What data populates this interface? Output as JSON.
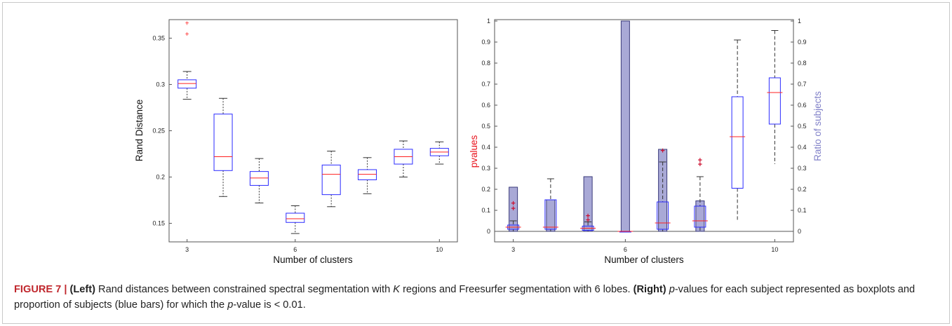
{
  "chart_data": [
    {
      "type": "box",
      "panel": "left",
      "xlabel": "Number of clusters",
      "ylabel": "Rand Distance",
      "xlim": [
        2.5,
        10.5
      ],
      "ylim": [
        0.13,
        0.37
      ],
      "x_ticks": [
        3,
        6,
        10
      ],
      "y_ticks": [
        0.15,
        0.2,
        0.25,
        0.3,
        0.35
      ],
      "boxes": [
        {
          "k": 3,
          "whisker_low": 0.284,
          "q1": 0.296,
          "median": 0.301,
          "q3": 0.305,
          "whisker_high": 0.314,
          "outliers": [
            0.354,
            0.366
          ]
        },
        {
          "k": 4,
          "whisker_low": 0.179,
          "q1": 0.207,
          "median": 0.222,
          "q3": 0.268,
          "whisker_high": 0.285,
          "outliers": []
        },
        {
          "k": 5,
          "whisker_low": 0.172,
          "q1": 0.191,
          "median": 0.199,
          "q3": 0.206,
          "whisker_high": 0.22,
          "outliers": []
        },
        {
          "k": 6,
          "whisker_low": 0.139,
          "q1": 0.151,
          "median": 0.155,
          "q3": 0.161,
          "whisker_high": 0.169,
          "outliers": []
        },
        {
          "k": 7,
          "whisker_low": 0.168,
          "q1": 0.181,
          "median": 0.203,
          "q3": 0.213,
          "whisker_high": 0.228,
          "outliers": []
        },
        {
          "k": 8,
          "whisker_low": 0.182,
          "q1": 0.197,
          "median": 0.203,
          "q3": 0.208,
          "whisker_high": 0.221,
          "outliers": []
        },
        {
          "k": 9,
          "whisker_low": 0.2,
          "q1": 0.214,
          "median": 0.222,
          "q3": 0.23,
          "whisker_high": 0.239,
          "outliers": []
        },
        {
          "k": 10,
          "whisker_low": 0.214,
          "q1": 0.223,
          "median": 0.227,
          "q3": 0.231,
          "whisker_high": 0.238,
          "outliers": []
        }
      ],
      "colors": {
        "box": "#2b2bff",
        "median": "#ff2020",
        "whisker": "#333333",
        "outlier": "#ff2020"
      }
    },
    {
      "type": "box+bar",
      "panel": "right",
      "xlabel": "Number of clusters",
      "ylabel_left": "pvalues",
      "ylabel_right": "Ratio of subjects",
      "xlim": [
        2.5,
        10.5
      ],
      "ylim": [
        0,
        1
      ],
      "x_ticks": [
        3,
        6,
        10
      ],
      "y_ticks": [
        0,
        0.1,
        0.2,
        0.3,
        0.4,
        0.5,
        0.6,
        0.7,
        0.8,
        0.9,
        1
      ],
      "ratio_bars": [
        {
          "k": 3,
          "ratio": 0.21
        },
        {
          "k": 4,
          "ratio": 0.15
        },
        {
          "k": 5,
          "ratio": 0.26
        },
        {
          "k": 6,
          "ratio": 1.0
        },
        {
          "k": 7,
          "ratio": 0.39
        },
        {
          "k": 8,
          "ratio": 0.145
        },
        {
          "k": 9,
          "ratio": 0.0
        },
        {
          "k": 10,
          "ratio": 0.0
        }
      ],
      "boxes": [
        {
          "k": 3,
          "whisker_low": 0.0,
          "q1": 0.01,
          "median": 0.02,
          "q3": 0.03,
          "whisker_high": 0.05,
          "outliers": [
            0.11,
            0.135
          ]
        },
        {
          "k": 4,
          "whisker_low": 0.0,
          "q1": 0.01,
          "median": 0.02,
          "q3": 0.15,
          "whisker_high": 0.25,
          "outliers": []
        },
        {
          "k": 5,
          "whisker_low": 0.0,
          "q1": 0.005,
          "median": 0.015,
          "q3": 0.025,
          "whisker_high": 0.045,
          "outliers": [
            0.055,
            0.075
          ]
        },
        {
          "k": 6,
          "whisker_low": 0.0,
          "q1": 0.0,
          "median": 0.0,
          "q3": 0.0,
          "whisker_high": 0.0,
          "outliers": []
        },
        {
          "k": 7,
          "whisker_low": 0.0,
          "q1": 0.01,
          "median": 0.04,
          "q3": 0.14,
          "whisker_high": 0.33,
          "outliers": [
            0.385
          ]
        },
        {
          "k": 8,
          "whisker_low": 0.0,
          "q1": 0.02,
          "median": 0.05,
          "q3": 0.12,
          "whisker_high": 0.26,
          "outliers": [
            0.32,
            0.34
          ]
        },
        {
          "k": 9,
          "whisker_low": 0.055,
          "q1": 0.205,
          "median": 0.45,
          "q3": 0.64,
          "whisker_high": 0.91,
          "outliers": []
        },
        {
          "k": 10,
          "whisker_low": 0.32,
          "q1": 0.51,
          "median": 0.66,
          "q3": 0.73,
          "whisker_high": 0.955,
          "outliers": []
        }
      ],
      "colors": {
        "bar_fill": "#a9a9d6",
        "bar_edge": "#3a3a7a",
        "box": "#2b2bff",
        "median": "#ff2020",
        "whisker": "#333333",
        "outlier": "#cc1030",
        "ylabel_left": "#e8101a",
        "ylabel_right": "#8080c8"
      }
    }
  ],
  "caption": {
    "figure_label": "FIGURE 7 |",
    "left_label": "(Left)",
    "text_1": " Rand distances between constrained spectral segmentation with ",
    "k_var": "K",
    "text_2": " regions and Freesurfer segmentation with 6 lobes. ",
    "right_label": "(Right)",
    "p_var_1": "p",
    "text_3": "-values for each subject represented as boxplots and proportion of subjects (blue bars) for which the ",
    "p_var_2": "p",
    "text_4": "-value is < 0.01."
  }
}
